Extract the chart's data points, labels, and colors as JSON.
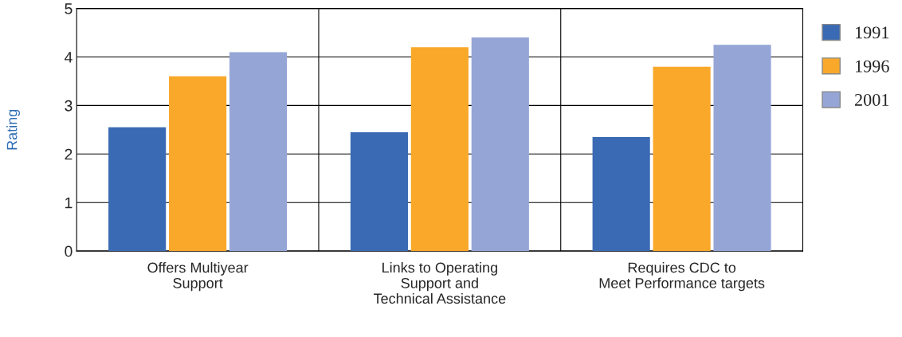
{
  "chart_data": {
    "type": "bar",
    "ylabel": "Rating",
    "categories": [
      "Offers Multiyear\nSupport",
      "Links to Operating\nSupport and\nTechnical Assistance",
      "Requires CDC to\nMeet Performance targets"
    ],
    "series": [
      {
        "name": "1991",
        "color": "#3a6ab4",
        "values": [
          2.55,
          2.45,
          2.35
        ]
      },
      {
        "name": "1996",
        "color": "#f9a82a",
        "values": [
          3.6,
          4.2,
          3.8
        ]
      },
      {
        "name": "2001",
        "color": "#95a6d6",
        "values": [
          4.1,
          4.4,
          4.25
        ]
      }
    ],
    "ylim": [
      0,
      5
    ],
    "yticks": [
      0,
      1,
      2,
      3,
      4,
      5
    ],
    "grid": true,
    "legend": "right"
  }
}
